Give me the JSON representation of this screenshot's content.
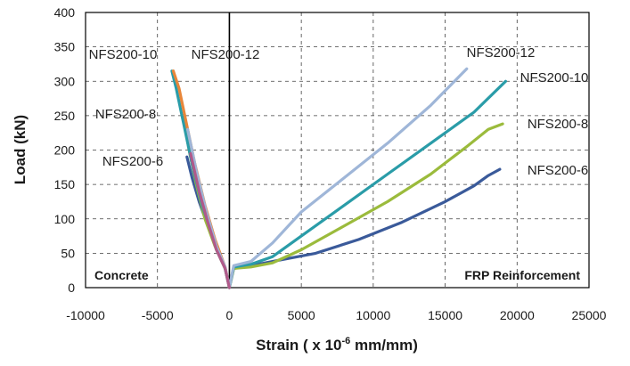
{
  "chart_data": {
    "type": "line",
    "title": "",
    "xlabel": "Strain ( x 10-6 mm/mm)",
    "xlabel_parts": {
      "prefix": "Strain ( x 10",
      "superscript": "-6",
      "suffix": " mm/mm)"
    },
    "ylabel": "Load (kN)",
    "xlim": [
      -10000,
      25000
    ],
    "ylim": [
      0,
      400
    ],
    "x_ticks": [
      -10000,
      -5000,
      0,
      5000,
      10000,
      15000,
      20000,
      25000
    ],
    "y_ticks": [
      0,
      50,
      100,
      150,
      200,
      250,
      300,
      350,
      400
    ],
    "grid": true,
    "legend": "none (series labeled directly on curves)",
    "region_labels": {
      "left": "Concrete",
      "right": "FRP Reinforcement"
    },
    "series": [
      {
        "name": "NFS200-6",
        "color": "#3a5a9a",
        "concrete": [
          [
            0,
            0
          ],
          [
            -300,
            28
          ],
          [
            -900,
            55
          ],
          [
            -1500,
            90
          ],
          [
            -2100,
            125
          ],
          [
            -2600,
            160
          ],
          [
            -2950,
            190
          ]
        ],
        "frp": [
          [
            0,
            0
          ],
          [
            300,
            28
          ],
          [
            1500,
            32
          ],
          [
            3000,
            38
          ],
          [
            6000,
            50
          ],
          [
            9000,
            70
          ],
          [
            12000,
            95
          ],
          [
            15000,
            125
          ],
          [
            17000,
            148
          ],
          [
            18000,
            163
          ],
          [
            18800,
            172
          ]
        ]
      },
      {
        "name": "NFS200-8",
        "color": "#9bbb3c",
        "concrete": [
          [
            0,
            0
          ],
          [
            -300,
            28
          ],
          [
            -1000,
            60
          ],
          [
            -1700,
            100
          ],
          [
            -2300,
            150
          ],
          [
            -2800,
            200
          ],
          [
            -3200,
            248
          ]
        ],
        "frp": [
          [
            0,
            0
          ],
          [
            300,
            28
          ],
          [
            1500,
            30
          ],
          [
            3000,
            36
          ],
          [
            5000,
            55
          ],
          [
            8000,
            90
          ],
          [
            11000,
            125
          ],
          [
            14000,
            165
          ],
          [
            16500,
            205
          ],
          [
            18000,
            230
          ],
          [
            19000,
            238
          ]
        ]
      },
      {
        "name": "NFS200-10",
        "color": "#2a9ca8",
        "concrete": [
          [
            0,
            0
          ],
          [
            -300,
            28
          ],
          [
            -1100,
            70
          ],
          [
            -1900,
            120
          ],
          [
            -2600,
            180
          ],
          [
            -3200,
            240
          ],
          [
            -3700,
            290
          ],
          [
            -4000,
            315
          ]
        ],
        "frp": [
          [
            0,
            0
          ],
          [
            300,
            30
          ],
          [
            1500,
            34
          ],
          [
            3000,
            45
          ],
          [
            5000,
            75
          ],
          [
            8000,
            120
          ],
          [
            11000,
            165
          ],
          [
            14000,
            210
          ],
          [
            17000,
            255
          ],
          [
            19200,
            300
          ]
        ]
      },
      {
        "name": "NFS200-12",
        "color": "#e8863a",
        "concrete": [
          [
            0,
            0
          ],
          [
            -300,
            30
          ],
          [
            -1000,
            70
          ],
          [
            -1700,
            120
          ],
          [
            -2400,
            180
          ],
          [
            -3000,
            240
          ],
          [
            -3500,
            290
          ],
          [
            -3900,
            315
          ]
        ],
        "frp": []
      },
      {
        "name": "NFS200-12",
        "color": "#9fb6d8",
        "concrete": [
          [
            0,
            0
          ],
          [
            -300,
            30
          ],
          [
            -900,
            60
          ],
          [
            -1600,
            110
          ],
          [
            -2300,
            170
          ],
          [
            -2900,
            230
          ]
        ],
        "frp": [
          [
            0,
            0
          ],
          [
            300,
            32
          ],
          [
            1500,
            38
          ],
          [
            3000,
            65
          ],
          [
            5000,
            110
          ],
          [
            8000,
            160
          ],
          [
            11000,
            210
          ],
          [
            14000,
            265
          ],
          [
            16500,
            318
          ]
        ]
      },
      {
        "name": "NFS200-10",
        "color": "#b05a8a",
        "concrete": [
          [
            0,
            0
          ],
          [
            -300,
            28
          ],
          [
            -900,
            55
          ],
          [
            -1500,
            95
          ],
          [
            -2100,
            140
          ],
          [
            -2700,
            195
          ]
        ],
        "frp": []
      }
    ],
    "series_labels": [
      {
        "text": "NFS200-10"
      },
      {
        "text": "NFS200-12"
      },
      {
        "text": "NFS200-8"
      },
      {
        "text": "NFS200-6"
      },
      {
        "text": "NFS200-12"
      },
      {
        "text": "NFS200-10"
      },
      {
        "text": "NFS200-8"
      },
      {
        "text": "NFS200-6"
      }
    ]
  }
}
